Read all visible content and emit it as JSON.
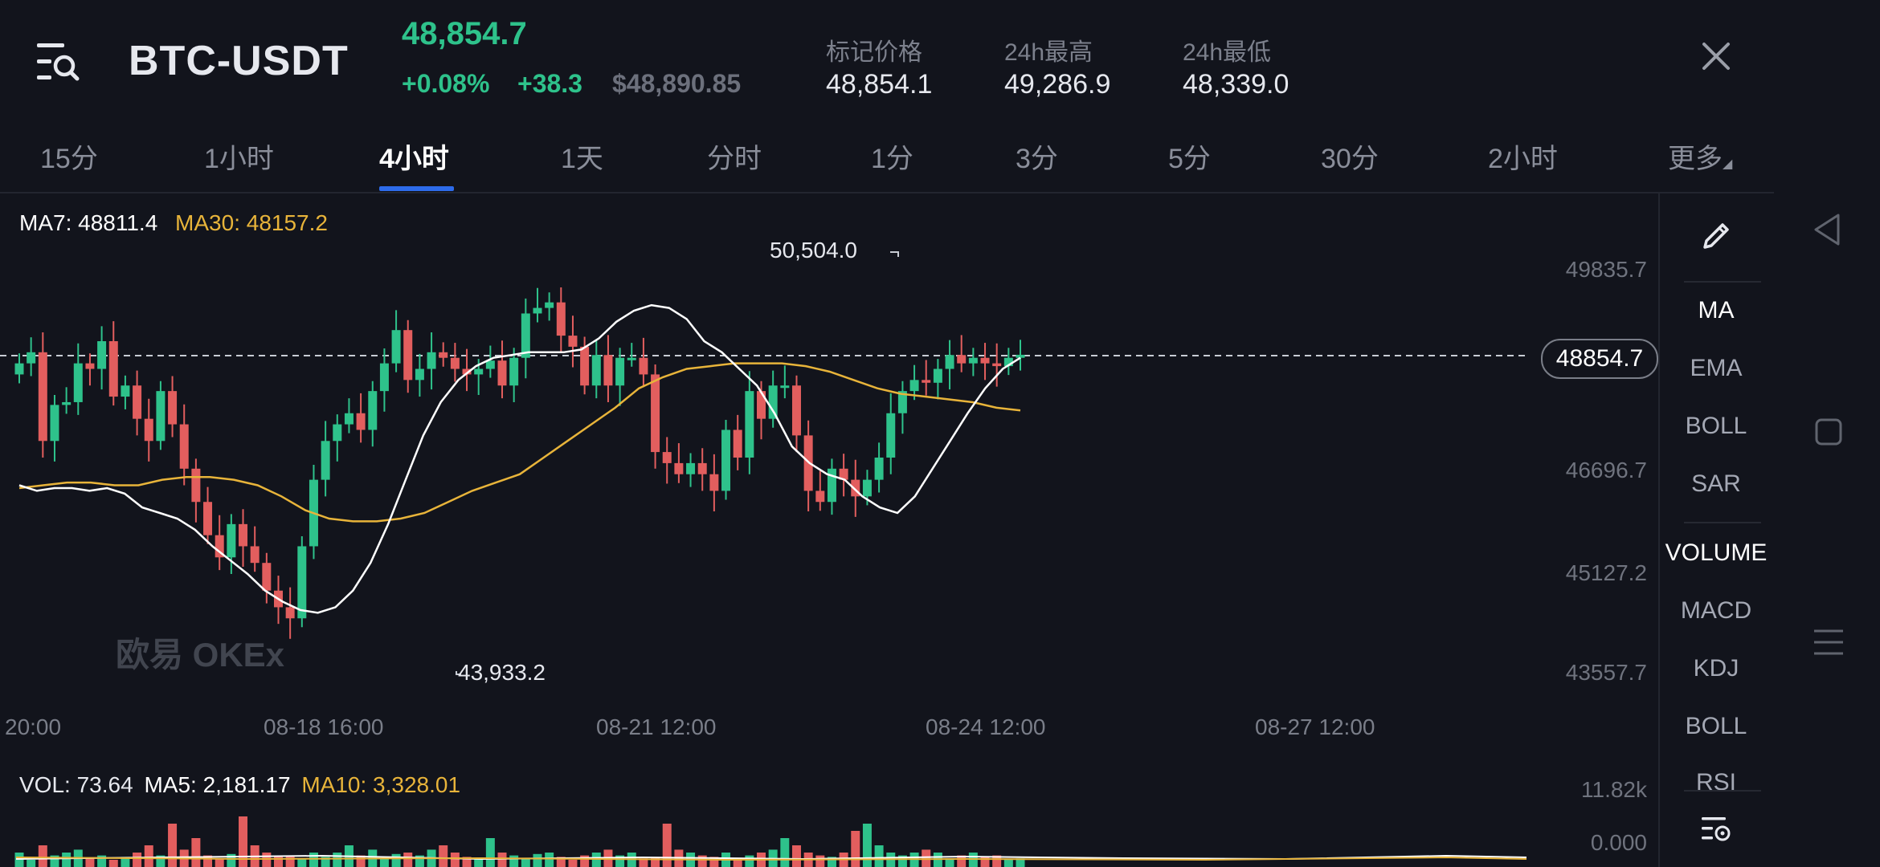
{
  "header": {
    "pair": "BTC-USDT",
    "last_price": "48,854.7",
    "change_pct": "+0.08%",
    "change_abs": "+38.3",
    "usd_price": "$48,890.85",
    "stats": [
      {
        "label": "标记价格",
        "value": "48,854.1"
      },
      {
        "label": "24h最高",
        "value": "49,286.9"
      },
      {
        "label": "24h最低",
        "value": "48,339.0"
      }
    ],
    "colors": {
      "up": "#2ec28b",
      "down": "#e25e5e",
      "accent": "#2d6bea"
    }
  },
  "tabs": [
    {
      "label": "15分",
      "active": false
    },
    {
      "label": "1小时",
      "active": false
    },
    {
      "label": "4小时",
      "active": true
    },
    {
      "label": "1天",
      "active": false
    },
    {
      "label": "分时",
      "active": false
    },
    {
      "label": "1分",
      "active": false
    },
    {
      "label": "3分",
      "active": false
    },
    {
      "label": "5分",
      "active": false
    },
    {
      "label": "30分",
      "active": false
    },
    {
      "label": "2小时",
      "active": false
    },
    {
      "label": "更多",
      "active": false
    }
  ],
  "chart": {
    "ma7_label": "MA7: 48811.4",
    "ma30_label": "MA30: 48157.2",
    "high_marker": "50,504.0",
    "low_marker": "43,933.2",
    "current_price_tag": "48854.7",
    "watermark": "欧易 OKEx",
    "y_ticks": [
      "49835.7",
      "46696.7",
      "45127.2",
      "43557.7"
    ],
    "x_ticks": [
      "20:00",
      "08-18 16:00",
      "08-21 12:00",
      "08-24 12:00",
      "08-27 12:00"
    ]
  },
  "volume": {
    "vol_label": "VOL: 73.64",
    "ma5_label": "MA5: 2,181.17",
    "ma10_label": "MA10: 3,328.01",
    "y_ticks": [
      "11.82k",
      "0.000"
    ]
  },
  "indicators": {
    "main": [
      "MA",
      "EMA",
      "BOLL",
      "SAR"
    ],
    "sub": [
      "VOLUME",
      "MACD",
      "KDJ",
      "BOLL",
      "RSI"
    ]
  },
  "chart_data": {
    "type": "candlestick",
    "ylim": [
      42800,
      51200
    ],
    "price_series": [
      48700,
      48900,
      47300,
      47950,
      48000,
      48700,
      48600,
      49100,
      48100,
      48300,
      47700,
      47300,
      48200,
      47600,
      46800,
      46200,
      45600,
      45200,
      45800,
      45400,
      45100,
      44600,
      44300,
      44100,
      45400,
      46600,
      47300,
      47600,
      47800,
      47500,
      48200,
      48700,
      49300,
      48400,
      48600,
      48900,
      48800,
      48600,
      48500,
      48600,
      48750,
      48300,
      48800,
      49600,
      49700,
      49800,
      49200,
      49000,
      48300,
      48850,
      48300,
      48800,
      48800,
      48500,
      47100,
      46900,
      46700,
      46900,
      46700,
      46400,
      47500,
      47000,
      48200,
      47700,
      48300,
      48300,
      47400,
      46400,
      46200,
      46800,
      46600,
      46300,
      46600,
      47000,
      47800,
      48200,
      48400,
      48350,
      48600,
      48850,
      48700,
      48800,
      48700,
      48650,
      48800,
      48854.7
    ],
    "ma7": [
      46500,
      46400,
      46450,
      46450,
      46400,
      46450,
      46350,
      46100,
      46000,
      45900,
      45700,
      45400,
      45150,
      44900,
      44600,
      44400,
      44250,
      44200,
      44300,
      44600,
      45100,
      45800,
      46600,
      47400,
      48000,
      48400,
      48650,
      48800,
      48850,
      48900,
      48900,
      48900,
      48950,
      49150,
      49450,
      49650,
      49750,
      49700,
      49500,
      49100,
      48900,
      48600,
      48300,
      47800,
      47200,
      46900,
      46700,
      46600,
      46300,
      46100,
      46000,
      46300,
      46800,
      47300,
      47800,
      48250,
      48600,
      48800
    ],
    "ma30": [
      46450,
      46500,
      46550,
      46550,
      46500,
      46500,
      46600,
      46650,
      46650,
      46600,
      46500,
      46300,
      46050,
      45900,
      45850,
      45850,
      45900,
      46000,
      46200,
      46400,
      46550,
      46700,
      47000,
      47300,
      47600,
      47900,
      48250,
      48450,
      48600,
      48650,
      48700,
      48700,
      48700,
      48650,
      48550,
      48400,
      48250,
      48150,
      48100,
      48050,
      48000,
      47900,
      47850
    ],
    "volume_bars": [
      0.1,
      0.05,
      0.15,
      0.08,
      0.1,
      0.12,
      0.06,
      0.08,
      0.05,
      0.07,
      0.1,
      0.15,
      0.08,
      0.3,
      0.12,
      0.2,
      0.08,
      0.06,
      0.09,
      0.35,
      0.15,
      0.1,
      0.07,
      0.08,
      0.06,
      0.1,
      0.07,
      0.1,
      0.15,
      0.08,
      0.12,
      0.06,
      0.09,
      0.1,
      0.08,
      0.12,
      0.15,
      0.1,
      0.07,
      0.06,
      0.2,
      0.1,
      0.08,
      0.06,
      0.09,
      0.1,
      0.07,
      0.05,
      0.08,
      0.1,
      0.12,
      0.08,
      0.1,
      0.06,
      0.07,
      0.3,
      0.12,
      0.1,
      0.08,
      0.07,
      0.1,
      0.06,
      0.08,
      0.1,
      0.12,
      0.2,
      0.15,
      0.1,
      0.08,
      0.07,
      0.1,
      0.25,
      0.3,
      0.15,
      0.1,
      0.08,
      0.1,
      0.12,
      0.1,
      0.06,
      0.08,
      0.1,
      0.07,
      0.08,
      0.05,
      0.06
    ]
  }
}
